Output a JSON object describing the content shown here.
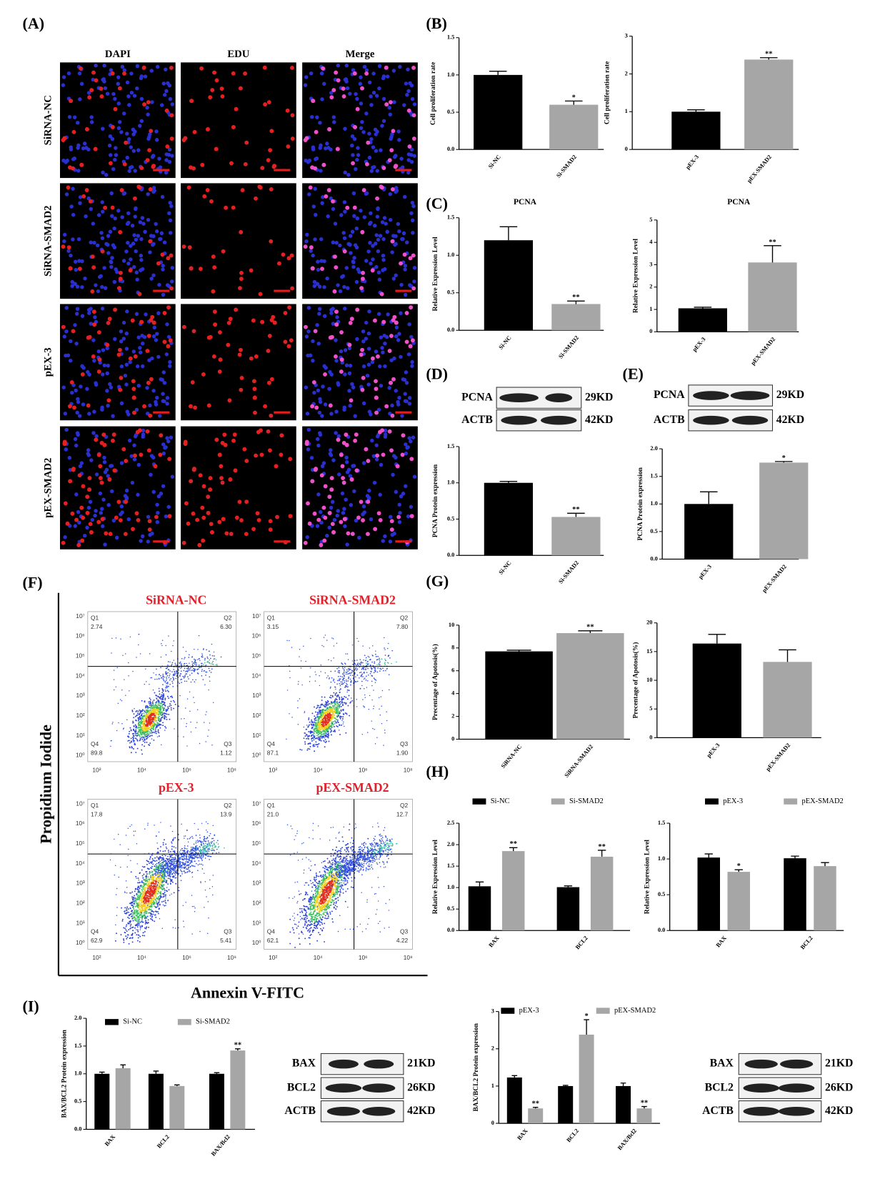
{
  "panel_labels": [
    "(A)",
    "(B)",
    "(C)",
    "(D)",
    "(E)",
    "(F)",
    "(G)",
    "(H)",
    "(I)"
  ],
  "microscopy": {
    "columns": [
      "DAPI",
      "EDU",
      "Merge"
    ],
    "rows": [
      "SiRNA-NC",
      "SiRNA-SMAD2",
      "pEX-3",
      "pEX-SMAD2"
    ]
  },
  "blots": [
    {
      "rows": [
        {
          "label": "PCNA",
          "size": "29KD"
        },
        {
          "label": "ACTB",
          "size": "42KD"
        }
      ]
    },
    {
      "rows": [
        {
          "label": "PCNA",
          "size": "29KD"
        },
        {
          "label": "ACTB",
          "size": "42KD"
        }
      ]
    },
    {
      "rows": [
        {
          "label": "BAX",
          "size": "21KD"
        },
        {
          "label": "BCL2",
          "size": "26KD"
        },
        {
          "label": "ACTB",
          "size": "42KD"
        }
      ]
    },
    {
      "rows": [
        {
          "label": "BAX",
          "size": "21KD"
        },
        {
          "label": "BCL2",
          "size": "26KD"
        },
        {
          "label": "ACTB",
          "size": "42KD"
        }
      ]
    }
  ],
  "flow": {
    "y_label": "Propidium Iodide",
    "x_label": "Annexin V-FITC",
    "x_ticks": [
      "10²",
      "10⁴",
      "10⁶",
      "10⁸"
    ],
    "y_ticks": [
      "10⁰",
      "10¹",
      "10²",
      "10³",
      "10⁴",
      "10⁵",
      "10⁶",
      "10⁷"
    ],
    "plots": [
      {
        "title": "SiRNA-NC",
        "quadrants": [
          {
            "name": "Q1",
            "value": "2.74"
          },
          {
            "name": "Q2",
            "value": "6.30"
          },
          {
            "name": "Q3",
            "value": "1.12"
          },
          {
            "name": "Q4",
            "value": "89.8"
          }
        ]
      },
      {
        "title": "SiRNA-SMAD2",
        "quadrants": [
          {
            "name": "Q1",
            "value": "3.15"
          },
          {
            "name": "Q2",
            "value": "7.80"
          },
          {
            "name": "Q3",
            "value": "1.90"
          },
          {
            "name": "Q4",
            "value": "87.1"
          }
        ]
      },
      {
        "title": "pEX-3",
        "quadrants": [
          {
            "name": "Q1",
            "value": "17.8"
          },
          {
            "name": "Q2",
            "value": "13.9"
          },
          {
            "name": "Q3",
            "value": "5.41"
          },
          {
            "name": "Q4",
            "value": "62.9"
          }
        ]
      },
      {
        "title": "pEX-SMAD2",
        "quadrants": [
          {
            "name": "Q1",
            "value": "21.0"
          },
          {
            "name": "Q2",
            "value": "12.7"
          },
          {
            "name": "Q3",
            "value": "4.22"
          },
          {
            "name": "Q4",
            "value": "62.1"
          }
        ]
      }
    ]
  },
  "chart_data": [
    {
      "type": "bar",
      "ylabel": "Cell proliferation rate",
      "categories": [
        "Si-NC",
        "Si-SMAD2"
      ],
      "values": [
        1.0,
        0.6
      ],
      "errors": [
        0.05,
        0.05
      ],
      "significance": [
        null,
        "*"
      ],
      "colors": [
        "#000000",
        "#a6a6a6"
      ],
      "ylim": [
        0,
        1.5
      ],
      "yticks": [
        {
          "value": 0,
          "label": "0.0"
        },
        0.5,
        {
          "value": 1,
          "label": "1.0"
        },
        1.5
      ]
    },
    {
      "type": "bar",
      "ylabel": "Cell proliferation rate",
      "categories": [
        "pEX-3",
        "pEX-SMAD2"
      ],
      "values": [
        1.0,
        2.38
      ],
      "errors": [
        0.05,
        0.05
      ],
      "significance": [
        null,
        "**"
      ],
      "colors": [
        "#000000",
        "#a6a6a6"
      ],
      "ylim": [
        0,
        3
      ],
      "yticks": [
        0,
        1,
        2,
        3
      ]
    },
    {
      "type": "bar",
      "title": "PCNA",
      "ylabel": "Relative Expression Level",
      "categories": [
        "Si-NC",
        "Si-SMAD2"
      ],
      "values": [
        1.2,
        0.35
      ],
      "errors": [
        0.18,
        0.04
      ],
      "significance": [
        null,
        "**"
      ],
      "colors": [
        "#000000",
        "#a6a6a6"
      ],
      "ylim": [
        0,
        1.5
      ],
      "yticks": [
        {
          "value": 0,
          "label": "0.0"
        },
        0.5,
        {
          "value": 1,
          "label": "1.0"
        },
        1.5
      ]
    },
    {
      "type": "bar",
      "title": "PCNA",
      "ylabel": "Relative Expression Level",
      "categories": [
        "pEX-3",
        "pEX-SMAD2"
      ],
      "values": [
        1.05,
        3.1
      ],
      "errors": [
        0.05,
        0.75
      ],
      "significance": [
        null,
        "**"
      ],
      "colors": [
        "#000000",
        "#a6a6a6"
      ],
      "ylim": [
        0,
        5
      ],
      "yticks": [
        0,
        1,
        2,
        3,
        4,
        5
      ]
    },
    {
      "type": "bar",
      "ylabel": "PCNA Protein expression",
      "categories": [
        "Si-NC",
        "Si-SMAD2"
      ],
      "values": [
        1.0,
        0.53
      ],
      "errors": [
        0.02,
        0.05
      ],
      "significance": [
        null,
        "**"
      ],
      "colors": [
        "#000000",
        "#a6a6a6"
      ],
      "ylim": [
        0,
        1.5
      ],
      "yticks": [
        {
          "value": 0,
          "label": "0.0"
        },
        0.5,
        {
          "value": 1,
          "label": "1.0"
        },
        1.5
      ]
    },
    {
      "type": "bar",
      "ylabel": "PCNA Protein expression",
      "categories": [
        "pEX-3",
        "pEX-SMAD2"
      ],
      "values": [
        1.0,
        1.75
      ],
      "errors": [
        0.22,
        0.02
      ],
      "significance": [
        null,
        "*"
      ],
      "colors": [
        "#000000",
        "#a6a6a6"
      ],
      "ylim": [
        0,
        2
      ],
      "yticks": [
        {
          "value": 0,
          "label": "0.0"
        },
        0.5,
        {
          "value": 1,
          "label": "1.0"
        },
        1.5,
        {
          "value": 2,
          "label": "2.0"
        }
      ]
    },
    {
      "type": "bar",
      "ylabel": "Precentage of Apotosis(%)",
      "categories": [
        "SiRNA-NC",
        "SiRNA-SMAD2"
      ],
      "values": [
        7.7,
        9.3
      ],
      "errors": [
        0.1,
        0.2
      ],
      "significance": [
        null,
        "**"
      ],
      "colors": [
        "#000000",
        "#a6a6a6"
      ],
      "ylim": [
        0,
        10
      ],
      "yticks": [
        0,
        2,
        4,
        6,
        8,
        10
      ]
    },
    {
      "type": "bar",
      "ylabel": "Precentage of Apotosis(%)",
      "categories": [
        "pEX-3",
        "pEX-SMAD2"
      ],
      "values": [
        16.4,
        13.2
      ],
      "errors": [
        1.6,
        2.1
      ],
      "significance": [
        null,
        null
      ],
      "colors": [
        "#000000",
        "#a6a6a6"
      ],
      "ylim": [
        0,
        20
      ],
      "yticks": [
        0,
        5,
        10,
        15,
        20
      ]
    },
    {
      "type": "bar",
      "ylabel": "Relative Expression Level",
      "categories": [
        "BAX",
        "BCL2"
      ],
      "ylim": [
        0,
        2.5
      ],
      "yticks": [
        {
          "value": 0,
          "label": "0.0"
        },
        0.5,
        {
          "value": 1,
          "label": "1.0"
        },
        1.5,
        {
          "value": 2,
          "label": "2.0"
        },
        2.5
      ],
      "series": [
        {
          "name": "Si-NC",
          "color": "#000000",
          "values": [
            1.03,
            1.01
          ],
          "errors": [
            0.1,
            0.03
          ],
          "significance": [
            null,
            null
          ]
        },
        {
          "name": "Si-SMAD2",
          "color": "#a6a6a6",
          "values": [
            1.85,
            1.72
          ],
          "errors": [
            0.08,
            0.15
          ],
          "significance": [
            "**",
            "**"
          ]
        }
      ]
    },
    {
      "type": "bar",
      "ylabel": "Relative Expression Level",
      "categories": [
        "BAX",
        "BCL2"
      ],
      "ylim": [
        0,
        1.5
      ],
      "yticks": [
        {
          "value": 0,
          "label": "0.0"
        },
        0.5,
        {
          "value": 1,
          "label": "1.0"
        },
        1.5
      ],
      "series": [
        {
          "name": "pEX-3",
          "color": "#000000",
          "values": [
            1.02,
            1.01
          ],
          "errors": [
            0.05,
            0.03
          ],
          "significance": [
            null,
            null
          ]
        },
        {
          "name": "pEX-SMAD2",
          "color": "#a6a6a6",
          "values": [
            0.82,
            0.9
          ],
          "errors": [
            0.03,
            0.05
          ],
          "significance": [
            "*",
            null
          ]
        }
      ]
    },
    {
      "type": "bar",
      "ylabel": "BAX/BCL2 Protein expression",
      "categories": [
        "BAX",
        "BCL2",
        "BAX/Bcl2"
      ],
      "ylim": [
        0,
        2
      ],
      "yticks": [
        {
          "value": 0,
          "label": "0.0"
        },
        0.5,
        {
          "value": 1,
          "label": "1.0"
        },
        1.5,
        {
          "value": 2,
          "label": "2.0"
        }
      ],
      "series": [
        {
          "name": "Si-NC",
          "color": "#000000",
          "values": [
            1.0,
            1.0,
            1.0
          ],
          "errors": [
            0.03,
            0.05,
            0.02
          ],
          "significance": [
            null,
            null,
            null
          ]
        },
        {
          "name": "Si-SMAD2",
          "color": "#a6a6a6",
          "values": [
            1.1,
            0.78,
            1.42
          ],
          "errors": [
            0.06,
            0.02,
            0.03
          ],
          "significance": [
            null,
            null,
            "**"
          ]
        }
      ]
    },
    {
      "type": "bar",
      "ylabel": "BAX/BCL2 Protein expression",
      "categories": [
        "BAX",
        "BCL2",
        "BAX/Bcl2"
      ],
      "ylim": [
        0,
        3
      ],
      "yticks": [
        0,
        1,
        2,
        3
      ],
      "series": [
        {
          "name": "pEX-3",
          "color": "#000000",
          "values": [
            1.23,
            1.0,
            1.0
          ],
          "errors": [
            0.05,
            0.02,
            0.08
          ],
          "significance": [
            null,
            null,
            null
          ]
        },
        {
          "name": "pEX-SMAD2",
          "color": "#a6a6a6",
          "values": [
            0.4,
            2.38,
            0.4
          ],
          "errors": [
            0.03,
            0.4,
            0.05
          ],
          "significance": [
            "**",
            "*",
            "**"
          ]
        }
      ]
    }
  ]
}
